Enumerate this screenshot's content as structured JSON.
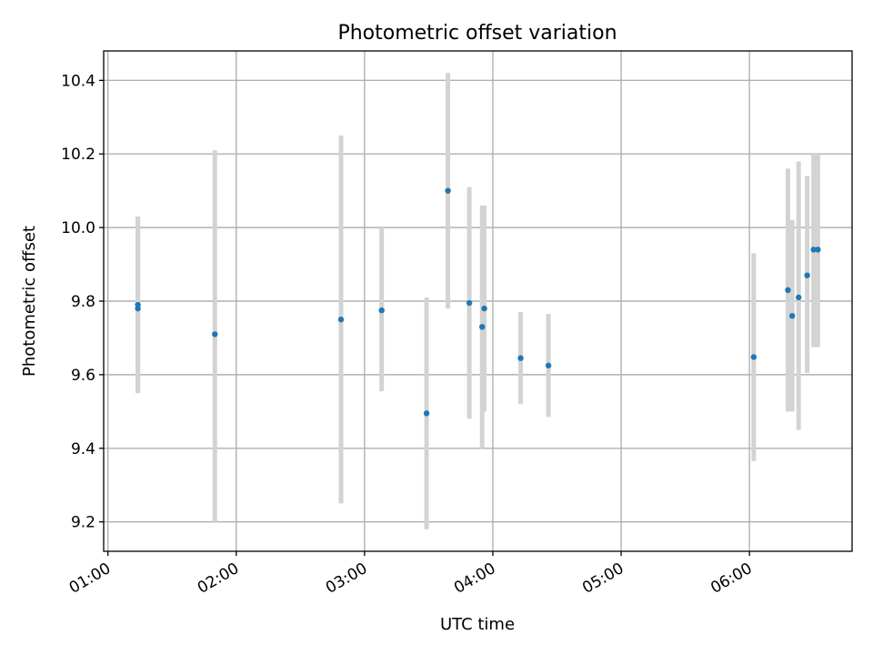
{
  "chart_data": {
    "type": "scatter",
    "title": "Photometric offset variation",
    "xlabel": "UTC time",
    "ylabel": "Photometric offset",
    "x_ticks": [
      "01:00",
      "02:00",
      "03:00",
      "04:00",
      "05:00",
      "06:00"
    ],
    "y_ticks": [
      "9.2",
      "9.4",
      "9.6",
      "9.8",
      "10.0",
      "10.2",
      "10.4"
    ],
    "xlim": [
      "00:58",
      "06:48"
    ],
    "ylim": [
      9.12,
      10.48
    ],
    "grid": true,
    "point_color": "#1f77b4",
    "errorbar_color": "#d3d3d3",
    "points": [
      {
        "x": "01:14",
        "y": 9.79,
        "yerr_low": 9.55,
        "yerr_high": 10.03
      },
      {
        "x": "01:14",
        "y": 9.78,
        "yerr_low": 9.55,
        "yerr_high": 10.03
      },
      {
        "x": "01:50",
        "y": 9.71,
        "yerr_low": 9.2,
        "yerr_high": 10.21
      },
      {
        "x": "02:49",
        "y": 9.75,
        "yerr_low": 9.25,
        "yerr_high": 10.25
      },
      {
        "x": "03:08",
        "y": 9.775,
        "yerr_low": 9.555,
        "yerr_high": 10.0
      },
      {
        "x": "03:29",
        "y": 9.495,
        "yerr_low": 9.18,
        "yerr_high": 9.81
      },
      {
        "x": "03:39",
        "y": 10.1,
        "yerr_low": 9.78,
        "yerr_high": 10.42
      },
      {
        "x": "03:49",
        "y": 9.795,
        "yerr_low": 9.48,
        "yerr_high": 10.11
      },
      {
        "x": "03:55",
        "y": 9.73,
        "yerr_low": 9.4,
        "yerr_high": 10.06
      },
      {
        "x": "03:56",
        "y": 9.78,
        "yerr_low": 9.5,
        "yerr_high": 10.06
      },
      {
        "x": "04:13",
        "y": 9.645,
        "yerr_low": 9.52,
        "yerr_high": 9.77
      },
      {
        "x": "04:26",
        "y": 9.625,
        "yerr_low": 9.485,
        "yerr_high": 9.765
      },
      {
        "x": "06:02",
        "y": 9.648,
        "yerr_low": 9.365,
        "yerr_high": 9.93
      },
      {
        "x": "06:18",
        "y": 9.83,
        "yerr_low": 9.5,
        "yerr_high": 10.16
      },
      {
        "x": "06:20",
        "y": 9.76,
        "yerr_low": 9.5,
        "yerr_high": 10.02
      },
      {
        "x": "06:23",
        "y": 9.81,
        "yerr_low": 9.45,
        "yerr_high": 10.18
      },
      {
        "x": "06:27",
        "y": 9.87,
        "yerr_low": 9.605,
        "yerr_high": 10.14
      },
      {
        "x": "06:30",
        "y": 9.94,
        "yerr_low": 9.675,
        "yerr_high": 10.2
      },
      {
        "x": "06:32",
        "y": 9.94,
        "yerr_low": 9.675,
        "yerr_high": 10.2
      }
    ]
  }
}
